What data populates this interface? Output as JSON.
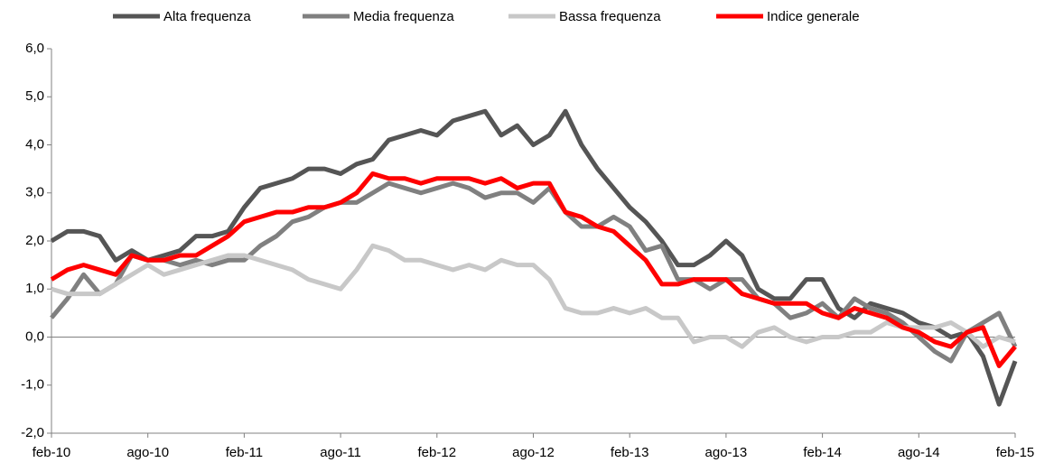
{
  "chart_data": {
    "type": "line",
    "categories": [
      "feb-10",
      null,
      null,
      null,
      null,
      null,
      "ago-10",
      null,
      null,
      null,
      null,
      null,
      "feb-11",
      null,
      null,
      null,
      null,
      null,
      "ago-11",
      null,
      null,
      null,
      null,
      null,
      "feb-12",
      null,
      null,
      null,
      null,
      null,
      "ago-12",
      null,
      null,
      null,
      null,
      null,
      "feb-13",
      null,
      null,
      null,
      null,
      null,
      "ago-13",
      null,
      null,
      null,
      null,
      null,
      "feb-14",
      null,
      null,
      null,
      null,
      null,
      "ago-14",
      null,
      null,
      null,
      null,
      null,
      "feb-15"
    ],
    "series": [
      {
        "name": "Alta frequenza",
        "color": "#555555",
        "values": [
          2.0,
          2.2,
          2.2,
          2.1,
          1.6,
          1.8,
          1.6,
          1.7,
          1.8,
          2.1,
          2.1,
          2.2,
          2.7,
          3.1,
          3.2,
          3.3,
          3.5,
          3.5,
          3.4,
          3.6,
          3.7,
          4.1,
          4.2,
          4.3,
          4.2,
          4.5,
          4.6,
          4.7,
          4.2,
          4.4,
          4.0,
          4.2,
          4.7,
          4.0,
          3.5,
          3.1,
          2.7,
          2.4,
          2.0,
          1.5,
          1.5,
          1.7,
          2.0,
          1.7,
          1.0,
          0.8,
          0.8,
          1.2,
          1.2,
          0.6,
          0.4,
          0.7,
          0.6,
          0.5,
          0.3,
          0.2,
          0.0,
          0.1,
          -0.4,
          -1.4,
          -0.5
        ]
      },
      {
        "name": "Media frequenza",
        "color": "#808080",
        "values": [
          0.4,
          0.8,
          1.3,
          0.9,
          1.1,
          1.7,
          1.6,
          1.6,
          1.5,
          1.6,
          1.5,
          1.6,
          1.6,
          1.9,
          2.1,
          2.4,
          2.5,
          2.7,
          2.8,
          2.8,
          3.0,
          3.2,
          3.1,
          3.0,
          3.1,
          3.2,
          3.1,
          2.9,
          3.0,
          3.0,
          2.8,
          3.1,
          2.6,
          2.3,
          2.3,
          2.5,
          2.3,
          1.8,
          1.9,
          1.2,
          1.2,
          1.0,
          1.2,
          1.2,
          0.8,
          0.7,
          0.4,
          0.5,
          0.7,
          0.4,
          0.8,
          0.6,
          0.5,
          0.3,
          0.0,
          -0.3,
          -0.5,
          0.1,
          0.3,
          0.5,
          -0.2
        ]
      },
      {
        "name": "Bassa frequenza",
        "color": "#c8c8c8",
        "values": [
          1.0,
          0.9,
          0.9,
          0.9,
          1.1,
          1.3,
          1.5,
          1.3,
          1.4,
          1.5,
          1.6,
          1.7,
          1.7,
          1.6,
          1.5,
          1.4,
          1.2,
          1.1,
          1.0,
          1.4,
          1.9,
          1.8,
          1.6,
          1.6,
          1.5,
          1.4,
          1.5,
          1.4,
          1.6,
          1.5,
          1.5,
          1.2,
          0.6,
          0.5,
          0.5,
          0.6,
          0.5,
          0.6,
          0.4,
          0.4,
          -0.1,
          0.0,
          0.0,
          -0.2,
          0.1,
          0.2,
          0.0,
          -0.1,
          0.0,
          0.0,
          0.1,
          0.1,
          0.3,
          0.2,
          0.2,
          0.2,
          0.3,
          0.1,
          -0.2,
          0.0,
          -0.1
        ]
      },
      {
        "name": "Indice generale",
        "color": "#ff0000",
        "values": [
          1.2,
          1.4,
          1.5,
          1.4,
          1.3,
          1.7,
          1.6,
          1.6,
          1.7,
          1.7,
          1.9,
          2.1,
          2.4,
          2.5,
          2.6,
          2.6,
          2.7,
          2.7,
          2.8,
          3.0,
          3.4,
          3.3,
          3.3,
          3.2,
          3.3,
          3.3,
          3.3,
          3.2,
          3.3,
          3.1,
          3.2,
          3.2,
          2.6,
          2.5,
          2.3,
          2.2,
          1.9,
          1.6,
          1.1,
          1.1,
          1.2,
          1.2,
          1.2,
          0.9,
          0.8,
          0.7,
          0.7,
          0.7,
          0.5,
          0.4,
          0.6,
          0.5,
          0.4,
          0.2,
          0.1,
          -0.1,
          -0.2,
          0.1,
          0.2,
          -0.6,
          -0.2
        ]
      }
    ],
    "ylim": [
      -2,
      6
    ],
    "yticks": [
      {
        "value": -2,
        "label": "-2,0"
      },
      {
        "value": -1,
        "label": "-1,0"
      },
      {
        "value": 0,
        "label": "0,0"
      },
      {
        "value": 1,
        "label": "1,0"
      },
      {
        "value": 2,
        "label": "2,0"
      },
      {
        "value": 3,
        "label": "3,0"
      },
      {
        "value": 4,
        "label": "4,0"
      },
      {
        "value": 5,
        "label": "5,0"
      },
      {
        "value": 6,
        "label": "6,0"
      }
    ],
    "grid": false,
    "legend": "top"
  }
}
